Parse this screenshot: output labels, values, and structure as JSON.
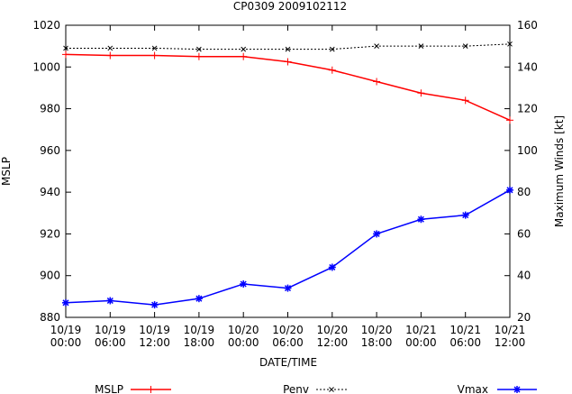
{
  "chart_data": {
    "type": "line",
    "title": "CP0309 2009102112",
    "xlabel": "DATE/TIME",
    "ylabel": "MSLP",
    "y2label": "Maximum Winds [kt]",
    "categories": [
      "10/19\n00:00",
      "10/19\n06:00",
      "10/19\n12:00",
      "10/19\n18:00",
      "10/20\n00:00",
      "10/20\n06:00",
      "10/20\n12:00",
      "10/20\n18:00",
      "10/21\n00:00",
      "10/21\n06:00",
      "10/21\n12:00"
    ],
    "ylim": [
      880,
      1020
    ],
    "yticks": [
      880,
      900,
      920,
      940,
      960,
      980,
      1000,
      1020
    ],
    "y2lim": [
      20,
      160
    ],
    "y2ticks": [
      20,
      40,
      60,
      80,
      100,
      120,
      140,
      160
    ],
    "series": [
      {
        "name": "MSLP",
        "axis": "y",
        "color": "#ff0000",
        "marker": "plus",
        "dash": "",
        "width": 1.5,
        "values": [
          1006,
          1005.5,
          1005.5,
          1005,
          1005,
          1002.5,
          998.5,
          993,
          987.5,
          984,
          974.5
        ]
      },
      {
        "name": "Penv",
        "axis": "y",
        "color": "#000000",
        "marker": "cross",
        "dash": "2,2",
        "width": 1,
        "values": [
          1009,
          1009,
          1009,
          1008.5,
          1008.5,
          1008.5,
          1008.5,
          1010,
          1010,
          1010,
          1011
        ]
      },
      {
        "name": "Vmax",
        "axis": "y2",
        "color": "#0000ff",
        "marker": "star",
        "dash": "",
        "width": 1.5,
        "values": [
          27,
          28,
          26,
          29,
          36,
          34,
          44,
          60,
          67,
          69,
          81
        ]
      }
    ]
  }
}
